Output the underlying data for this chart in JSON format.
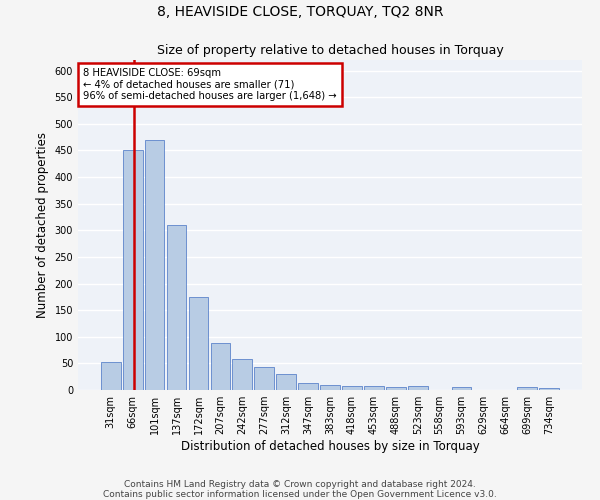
{
  "title": "8, HEAVISIDE CLOSE, TORQUAY, TQ2 8NR",
  "subtitle": "Size of property relative to detached houses in Torquay",
  "xlabel": "Distribution of detached houses by size in Torquay",
  "ylabel": "Number of detached properties",
  "categories": [
    "31sqm",
    "66sqm",
    "101sqm",
    "137sqm",
    "172sqm",
    "207sqm",
    "242sqm",
    "277sqm",
    "312sqm",
    "347sqm",
    "383sqm",
    "418sqm",
    "453sqm",
    "488sqm",
    "523sqm",
    "558sqm",
    "593sqm",
    "629sqm",
    "664sqm",
    "699sqm",
    "734sqm"
  ],
  "values": [
    52,
    450,
    470,
    310,
    175,
    88,
    58,
    43,
    30,
    14,
    9,
    8,
    7,
    6,
    8,
    0,
    5,
    0,
    0,
    5,
    3
  ],
  "bar_color": "#b8cce4",
  "bar_edge_color": "#4472c4",
  "red_line_x": 1.08,
  "annotation_line1": "8 HEAVISIDE CLOSE: 69sqm",
  "annotation_line2": "← 4% of detached houses are smaller (71)",
  "annotation_line3": "96% of semi-detached houses are larger (1,648) →",
  "annotation_box_color": "#ffffff",
  "annotation_box_edge_color": "#cc0000",
  "red_line_color": "#cc0000",
  "ylim": [
    0,
    620
  ],
  "yticks": [
    0,
    50,
    100,
    150,
    200,
    250,
    300,
    350,
    400,
    450,
    500,
    550,
    600
  ],
  "footnote1": "Contains HM Land Registry data © Crown copyright and database right 2024.",
  "footnote2": "Contains public sector information licensed under the Open Government Licence v3.0.",
  "bg_color": "#eef2f8",
  "grid_color": "#ffffff",
  "title_fontsize": 10,
  "subtitle_fontsize": 9,
  "tick_fontsize": 7,
  "label_fontsize": 8.5,
  "footnote_fontsize": 6.5
}
